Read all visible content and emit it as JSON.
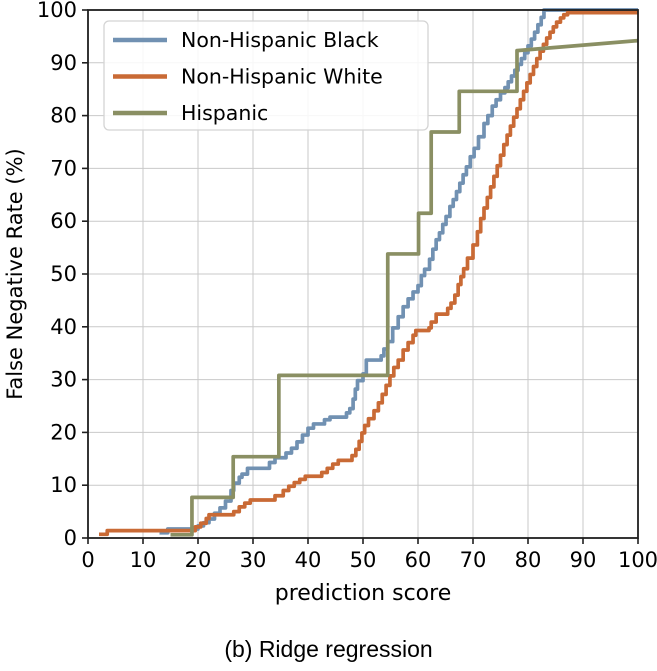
{
  "caption": "(b) Ridge regression",
  "chart_data": {
    "type": "line",
    "title": "",
    "xlabel": "prediction score",
    "ylabel": "False Negative Rate (%)",
    "xlim": [
      0,
      100
    ],
    "ylim": [
      0,
      100
    ],
    "xticks": [
      0,
      10,
      20,
      30,
      40,
      50,
      60,
      70,
      80,
      90,
      100
    ],
    "yticks": [
      0,
      10,
      20,
      30,
      40,
      50,
      60,
      70,
      80,
      90,
      100
    ],
    "grid": true,
    "grid_color": "#c9c9c9",
    "spine_color": "#1f1f1f",
    "legend_position": "upper-left",
    "series": [
      {
        "name": "Non-Hispanic Black",
        "color": "#7191b2",
        "interp": "steps-post",
        "points": [
          [
            13,
            1.0
          ],
          [
            14.5,
            1.7
          ],
          [
            20,
            2.3
          ],
          [
            21,
            2.9
          ],
          [
            22,
            3.6
          ],
          [
            23,
            4.7
          ],
          [
            24,
            5.7
          ],
          [
            25,
            7.0
          ],
          [
            26,
            9.0
          ],
          [
            26.5,
            10.4
          ],
          [
            27.5,
            11.5
          ],
          [
            28,
            12.1
          ],
          [
            29,
            13.2
          ],
          [
            33,
            14.3
          ],
          [
            34,
            15.2
          ],
          [
            36,
            16.1
          ],
          [
            37,
            17.0
          ],
          [
            38,
            18.2
          ],
          [
            39,
            19.5
          ],
          [
            40,
            20.8
          ],
          [
            41,
            21.6
          ],
          [
            43,
            22.4
          ],
          [
            44,
            22.9
          ],
          [
            47,
            23.7
          ],
          [
            47.6,
            24.5
          ],
          [
            48.2,
            26.3
          ],
          [
            48.6,
            28.2
          ],
          [
            49,
            29.8
          ],
          [
            50,
            31.1
          ],
          [
            50.6,
            33.7
          ],
          [
            53.3,
            34.5
          ],
          [
            53.8,
            35.8
          ],
          [
            54.5,
            37.2
          ],
          [
            55.4,
            39.8
          ],
          [
            56.4,
            41.9
          ],
          [
            57.3,
            43.8
          ],
          [
            58.2,
            45.3
          ],
          [
            59.1,
            46.6
          ],
          [
            60,
            47.8
          ],
          [
            60.6,
            49.7
          ],
          [
            61.2,
            50.9
          ],
          [
            62.1,
            52.8
          ],
          [
            62.7,
            54.7
          ],
          [
            63.3,
            56.5
          ],
          [
            63.9,
            57.8
          ],
          [
            64.5,
            59.4
          ],
          [
            65.1,
            60.9
          ],
          [
            65.8,
            62.8
          ],
          [
            66.4,
            64.1
          ],
          [
            67,
            65.6
          ],
          [
            67.6,
            67.2
          ],
          [
            68.2,
            68.8
          ],
          [
            68.8,
            70.3
          ],
          [
            69.5,
            72.2
          ],
          [
            70.2,
            73.8
          ],
          [
            71,
            76.0
          ],
          [
            72,
            78.5
          ],
          [
            72.7,
            80.0
          ],
          [
            73.5,
            81.8
          ],
          [
            74.2,
            83.0
          ],
          [
            75,
            84.3
          ],
          [
            75.8,
            85.3
          ],
          [
            76.4,
            86.4
          ],
          [
            77,
            87.5
          ],
          [
            77.6,
            88.6
          ],
          [
            78.2,
            89.7
          ],
          [
            78.8,
            90.8
          ],
          [
            79.4,
            91.9
          ],
          [
            80,
            93.2
          ],
          [
            80.6,
            94.5
          ],
          [
            81.2,
            95.8
          ],
          [
            81.8,
            97.2
          ],
          [
            82.4,
            98.6
          ],
          [
            82.9,
            100
          ],
          [
            100,
            100
          ]
        ]
      },
      {
        "name": "Non-Hispanic White",
        "color": "#c96a35",
        "interp": "steps-post",
        "points": [
          [
            2,
            0.7
          ],
          [
            3.5,
            1.4
          ],
          [
            19.5,
            2.1
          ],
          [
            20.5,
            2.8
          ],
          [
            21.5,
            3.7
          ],
          [
            22,
            4.4
          ],
          [
            26.5,
            5.0
          ],
          [
            27.5,
            5.9
          ],
          [
            28.5,
            6.6
          ],
          [
            29.5,
            7.2
          ],
          [
            34,
            8.0
          ],
          [
            35.5,
            9.0
          ],
          [
            36.5,
            9.8
          ],
          [
            37.5,
            10.5
          ],
          [
            38.5,
            11.1
          ],
          [
            39.5,
            11.7
          ],
          [
            42.5,
            12.4
          ],
          [
            43.5,
            13.2
          ],
          [
            44.5,
            14.0
          ],
          [
            45.5,
            14.7
          ],
          [
            48,
            15.6
          ],
          [
            48.7,
            16.8
          ],
          [
            49.3,
            18.3
          ],
          [
            49.8,
            19.9
          ],
          [
            50.3,
            21.3
          ],
          [
            51,
            22.6
          ],
          [
            52,
            24.1
          ],
          [
            52.8,
            25.6
          ],
          [
            53.5,
            27.2
          ],
          [
            54.2,
            28.9
          ],
          [
            54.9,
            30.7
          ],
          [
            55.6,
            32.3
          ],
          [
            56.4,
            33.7
          ],
          [
            57.3,
            35.6
          ],
          [
            58.2,
            37.0
          ],
          [
            59.1,
            38.4
          ],
          [
            59.6,
            39.3
          ],
          [
            62,
            39.8
          ],
          [
            62.4,
            40.9
          ],
          [
            63.3,
            42.4
          ],
          [
            65.4,
            43.5
          ],
          [
            66,
            44.5
          ],
          [
            66.7,
            46.0
          ],
          [
            67.3,
            48.0
          ],
          [
            67.8,
            49.5
          ],
          [
            68.3,
            51.0
          ],
          [
            69,
            53.0
          ],
          [
            70,
            55.5
          ],
          [
            70.8,
            58.0
          ],
          [
            71.4,
            60.5
          ],
          [
            72,
            62.5
          ],
          [
            72.6,
            64.5
          ],
          [
            73.2,
            66.5
          ],
          [
            73.8,
            68.5
          ],
          [
            74.4,
            70.5
          ],
          [
            75,
            72.5
          ],
          [
            75.6,
            74.5
          ],
          [
            76.2,
            76.3
          ],
          [
            76.8,
            78.0
          ],
          [
            77.4,
            79.7
          ],
          [
            78,
            81.3
          ],
          [
            78.6,
            83.0
          ],
          [
            79.2,
            84.6
          ],
          [
            79.8,
            86.2
          ],
          [
            80.4,
            87.8
          ],
          [
            81,
            89.3
          ],
          [
            81.6,
            90.8
          ],
          [
            82.2,
            92.2
          ],
          [
            82.8,
            93.5
          ],
          [
            83.4,
            94.7
          ],
          [
            84,
            95.8
          ],
          [
            84.6,
            96.8
          ],
          [
            85.2,
            97.7
          ],
          [
            85.9,
            98.5
          ],
          [
            86.5,
            99.1
          ],
          [
            87.2,
            99.5
          ],
          [
            100,
            99.5
          ]
        ]
      },
      {
        "name": "Hispanic",
        "color": "#8a8f63",
        "interp": "linear",
        "points": [
          [
            15,
            0.6
          ],
          [
            18.9,
            0.6
          ],
          [
            18.9,
            7.7
          ],
          [
            26.4,
            7.7
          ],
          [
            26.4,
            15.4
          ],
          [
            34.7,
            15.4
          ],
          [
            34.7,
            30.8
          ],
          [
            54.5,
            30.8
          ],
          [
            54.5,
            53.8
          ],
          [
            60.1,
            53.8
          ],
          [
            60.1,
            61.5
          ],
          [
            62.4,
            61.5
          ],
          [
            62.4,
            76.9
          ],
          [
            67.5,
            76.9
          ],
          [
            67.5,
            84.6
          ],
          [
            78,
            84.6
          ],
          [
            78,
            92.3
          ],
          [
            100,
            94.2
          ]
        ]
      }
    ]
  }
}
